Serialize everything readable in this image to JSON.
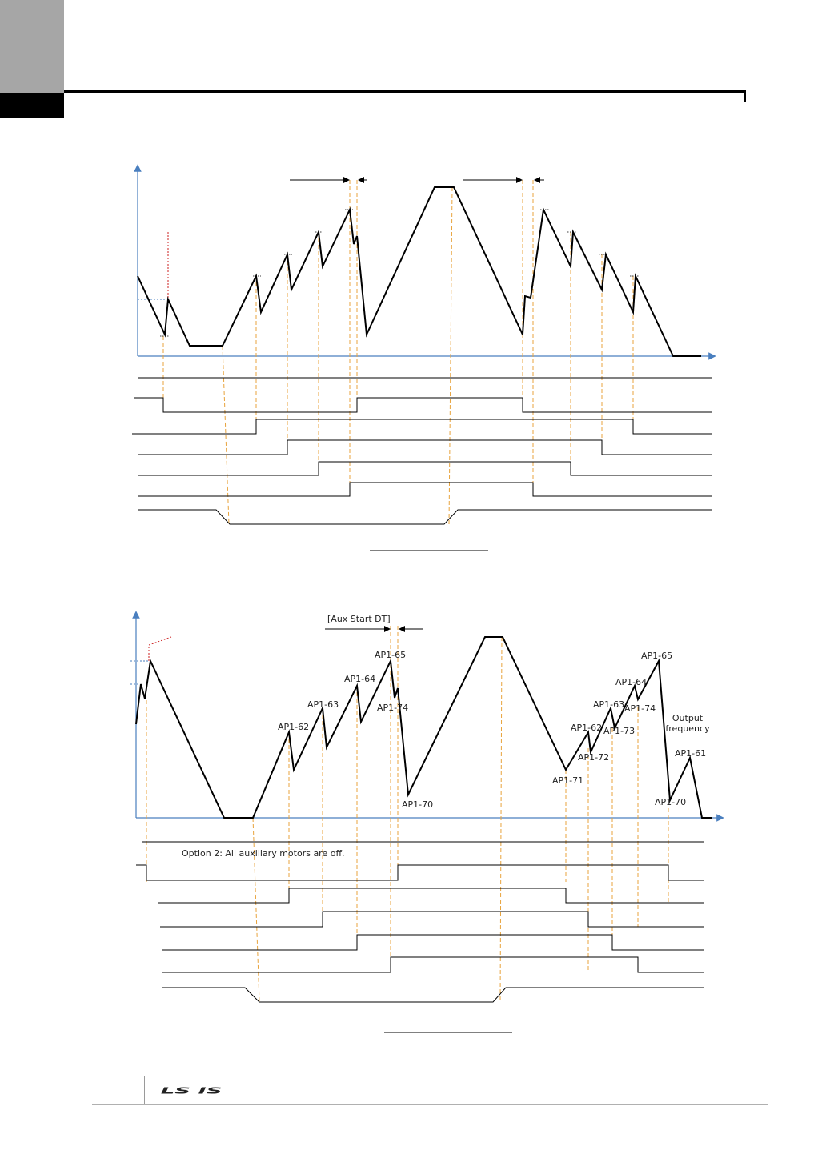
{
  "colors": {
    "axis": "#4a7fbf",
    "signal": "#000000",
    "guide": "#e8a33c",
    "marker": "#cc2222",
    "header_gray": "#a6a6a6"
  },
  "diagram_top": {
    "caption": ""
  },
  "diagram_bottom": {
    "aux_start_label": "[Aux Start DT]",
    "option_note": "Option 2: All auxiliary motors are off.",
    "output_frequency_line1": "Output",
    "output_frequency_line2": "frequency",
    "labels": {
      "ap1_62_left": "AP1-62",
      "ap1_63_left": "AP1-63",
      "ap1_64_left": "AP1-64",
      "ap1_65_left": "AP1-65",
      "ap1_74_left": "AP1-74",
      "ap1_70_left": "AP1-70",
      "ap1_71": "AP1-71",
      "ap1_62_right": "AP1-62",
      "ap1_72": "AP1-72",
      "ap1_63_right": "AP1-63",
      "ap1_73": "AP1-73",
      "ap1_64_right": "AP1-64",
      "ap1_74_right": "AP1-74",
      "ap1_65_right": "AP1-65",
      "ap1_61": "AP1-61",
      "ap1_70_right": "AP1-70"
    }
  },
  "footer": {
    "logo_text": "LS IS",
    "logo_icon": "ls-is-logo"
  }
}
